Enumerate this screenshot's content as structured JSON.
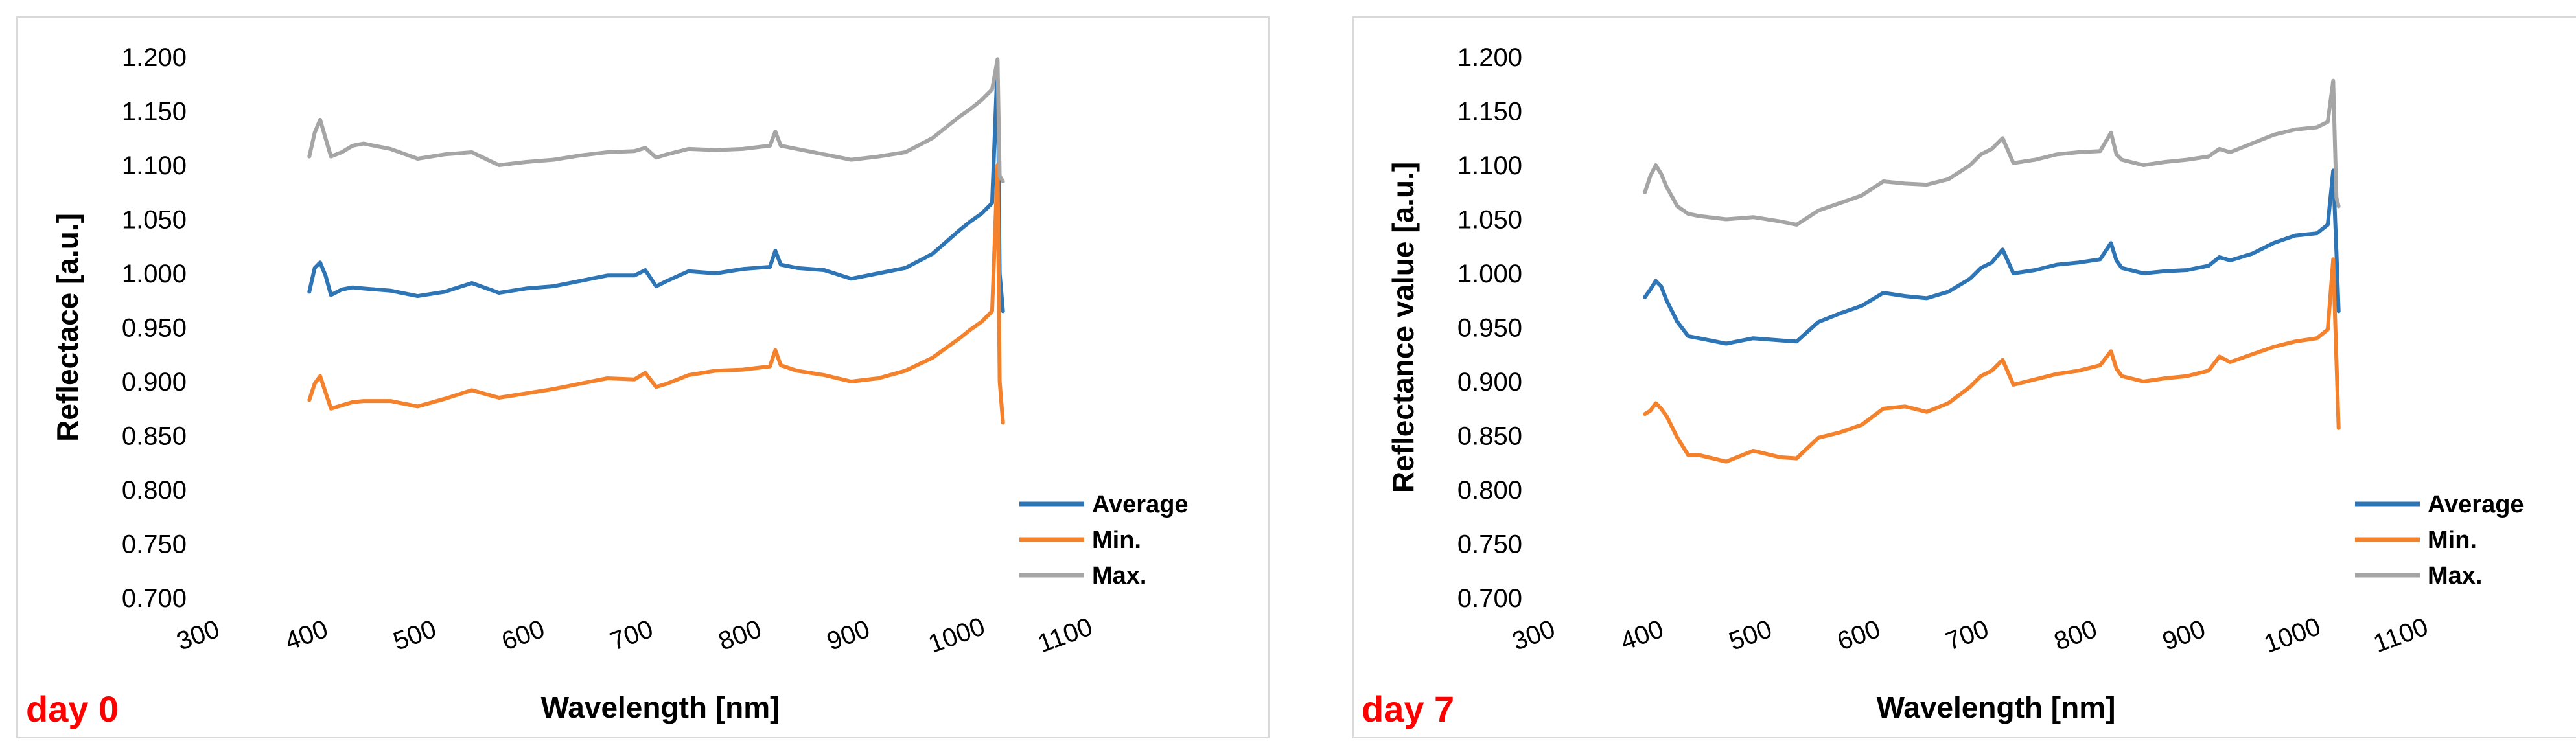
{
  "chart_data": [
    {
      "type": "line",
      "panel_label": "day 0",
      "xlabel": "Wavelength [nm]",
      "ylabel": "Reflectace [a.u.]",
      "xlim": [
        300,
        1100
      ],
      "ylim": [
        0.7,
        1.2
      ],
      "xticks": [
        300,
        400,
        500,
        600,
        700,
        800,
        900,
        1000,
        1100
      ],
      "yticks": [
        "0.700",
        "0.750",
        "0.800",
        "0.850",
        "0.900",
        "0.950",
        "1.000",
        "1.050",
        "1.100",
        "1.150",
        "1.200"
      ],
      "legend_position": "bottom-right",
      "series": [
        {
          "name": "Average",
          "color": "#2e75b6",
          "x": [
            400,
            405,
            410,
            415,
            420,
            430,
            440,
            450,
            475,
            500,
            525,
            550,
            575,
            600,
            625,
            650,
            675,
            700,
            710,
            720,
            730,
            750,
            775,
            800,
            825,
            830,
            835,
            850,
            875,
            900,
            925,
            950,
            975,
            1000,
            1010,
            1020,
            1030,
            1035,
            1037,
            1040
          ],
          "y": [
            0.983,
            1.005,
            1.01,
            0.998,
            0.98,
            0.985,
            0.987,
            0.986,
            0.984,
            0.979,
            0.983,
            0.991,
            0.982,
            0.986,
            0.988,
            0.993,
            0.998,
            0.998,
            1.003,
            0.988,
            0.993,
            1.002,
            1.0,
            1.004,
            1.006,
            1.021,
            1.008,
            1.005,
            1.003,
            0.995,
            1.0,
            1.005,
            1.018,
            1.04,
            1.048,
            1.055,
            1.065,
            1.195,
            1.0,
            0.965
          ]
        },
        {
          "name": "Min.",
          "color": "#f4812b",
          "x": [
            400,
            405,
            410,
            415,
            420,
            430,
            440,
            450,
            475,
            500,
            525,
            550,
            575,
            600,
            625,
            650,
            675,
            700,
            710,
            720,
            730,
            750,
            775,
            800,
            825,
            830,
            835,
            850,
            875,
            900,
            925,
            950,
            975,
            1000,
            1010,
            1020,
            1030,
            1035,
            1037,
            1040
          ],
          "y": [
            0.883,
            0.898,
            0.905,
            0.89,
            0.875,
            0.878,
            0.881,
            0.882,
            0.882,
            0.877,
            0.884,
            0.892,
            0.885,
            0.889,
            0.893,
            0.898,
            0.903,
            0.902,
            0.908,
            0.895,
            0.898,
            0.906,
            0.91,
            0.911,
            0.914,
            0.929,
            0.915,
            0.91,
            0.906,
            0.9,
            0.903,
            0.91,
            0.922,
            0.94,
            0.948,
            0.955,
            0.965,
            1.1,
            0.9,
            0.862
          ]
        },
        {
          "name": "Max.",
          "color": "#a5a5a5",
          "x": [
            400,
            405,
            410,
            415,
            420,
            430,
            440,
            450,
            475,
            500,
            525,
            550,
            575,
            600,
            625,
            650,
            675,
            700,
            710,
            720,
            730,
            750,
            775,
            800,
            825,
            830,
            835,
            850,
            875,
            900,
            925,
            950,
            975,
            1000,
            1010,
            1020,
            1030,
            1035,
            1037,
            1040
          ],
          "y": [
            1.108,
            1.13,
            1.142,
            1.125,
            1.108,
            1.112,
            1.118,
            1.12,
            1.115,
            1.106,
            1.11,
            1.112,
            1.1,
            1.103,
            1.105,
            1.109,
            1.112,
            1.113,
            1.116,
            1.107,
            1.11,
            1.115,
            1.114,
            1.115,
            1.118,
            1.131,
            1.118,
            1.115,
            1.11,
            1.105,
            1.108,
            1.112,
            1.125,
            1.145,
            1.152,
            1.16,
            1.17,
            1.198,
            1.09,
            1.085
          ]
        }
      ]
    },
    {
      "type": "line",
      "panel_label": "day 7",
      "xlabel": "Wavelength [nm]",
      "ylabel": "Reflectance value [a.u.]",
      "xlim": [
        300,
        1100
      ],
      "ylim": [
        0.7,
        1.2
      ],
      "xticks": [
        300,
        400,
        500,
        600,
        700,
        800,
        900,
        1000,
        1100
      ],
      "yticks": [
        "0.700",
        "0.750",
        "0.800",
        "0.850",
        "0.900",
        "0.950",
        "1.000",
        "1.050",
        "1.100",
        "1.150",
        "1.200"
      ],
      "legend_position": "bottom-right",
      "series": [
        {
          "name": "Average",
          "color": "#2e75b6",
          "x": [
            400,
            405,
            410,
            415,
            420,
            430,
            440,
            450,
            475,
            500,
            525,
            540,
            560,
            580,
            600,
            620,
            640,
            660,
            680,
            700,
            710,
            720,
            730,
            740,
            760,
            780,
            800,
            820,
            830,
            835,
            840,
            860,
            880,
            900,
            920,
            930,
            940,
            960,
            980,
            1000,
            1020,
            1030,
            1035,
            1038,
            1040
          ],
          "y": [
            0.978,
            0.985,
            0.993,
            0.988,
            0.975,
            0.955,
            0.942,
            0.94,
            0.935,
            0.94,
            0.938,
            0.937,
            0.955,
            0.963,
            0.97,
            0.982,
            0.979,
            0.977,
            0.983,
            0.995,
            1.005,
            1.01,
            1.022,
            1.0,
            1.003,
            1.008,
            1.01,
            1.013,
            1.028,
            1.012,
            1.005,
            1.0,
            1.002,
            1.003,
            1.007,
            1.015,
            1.012,
            1.018,
            1.028,
            1.035,
            1.037,
            1.045,
            1.095,
            1.02,
            0.965
          ]
        },
        {
          "name": "Min.",
          "color": "#f4812b",
          "x": [
            400,
            405,
            410,
            415,
            420,
            430,
            440,
            450,
            475,
            500,
            525,
            540,
            560,
            580,
            600,
            620,
            640,
            660,
            680,
            700,
            710,
            720,
            730,
            740,
            760,
            780,
            800,
            820,
            830,
            835,
            840,
            860,
            880,
            900,
            920,
            930,
            940,
            960,
            980,
            1000,
            1020,
            1030,
            1035,
            1038,
            1040
          ],
          "y": [
            0.87,
            0.873,
            0.88,
            0.875,
            0.868,
            0.848,
            0.832,
            0.832,
            0.826,
            0.836,
            0.83,
            0.829,
            0.848,
            0.853,
            0.86,
            0.875,
            0.877,
            0.872,
            0.88,
            0.895,
            0.905,
            0.91,
            0.92,
            0.897,
            0.902,
            0.907,
            0.91,
            0.915,
            0.928,
            0.912,
            0.905,
            0.9,
            0.903,
            0.905,
            0.91,
            0.923,
            0.918,
            0.925,
            0.932,
            0.937,
            0.94,
            0.948,
            1.013,
            0.92,
            0.857
          ]
        },
        {
          "name": "Max.",
          "color": "#a5a5a5",
          "x": [
            400,
            405,
            410,
            415,
            420,
            430,
            440,
            450,
            475,
            500,
            525,
            540,
            560,
            580,
            600,
            620,
            640,
            660,
            680,
            700,
            710,
            720,
            730,
            740,
            760,
            780,
            800,
            820,
            830,
            835,
            840,
            860,
            880,
            900,
            920,
            930,
            940,
            960,
            980,
            1000,
            1020,
            1030,
            1035,
            1038,
            1040
          ],
          "y": [
            1.075,
            1.09,
            1.1,
            1.092,
            1.08,
            1.062,
            1.055,
            1.053,
            1.05,
            1.052,
            1.048,
            1.045,
            1.058,
            1.065,
            1.072,
            1.085,
            1.083,
            1.082,
            1.087,
            1.1,
            1.11,
            1.115,
            1.125,
            1.102,
            1.105,
            1.11,
            1.112,
            1.113,
            1.13,
            1.11,
            1.105,
            1.1,
            1.103,
            1.105,
            1.108,
            1.115,
            1.112,
            1.12,
            1.128,
            1.133,
            1.135,
            1.14,
            1.178,
            1.07,
            1.062
          ]
        }
      ]
    }
  ]
}
